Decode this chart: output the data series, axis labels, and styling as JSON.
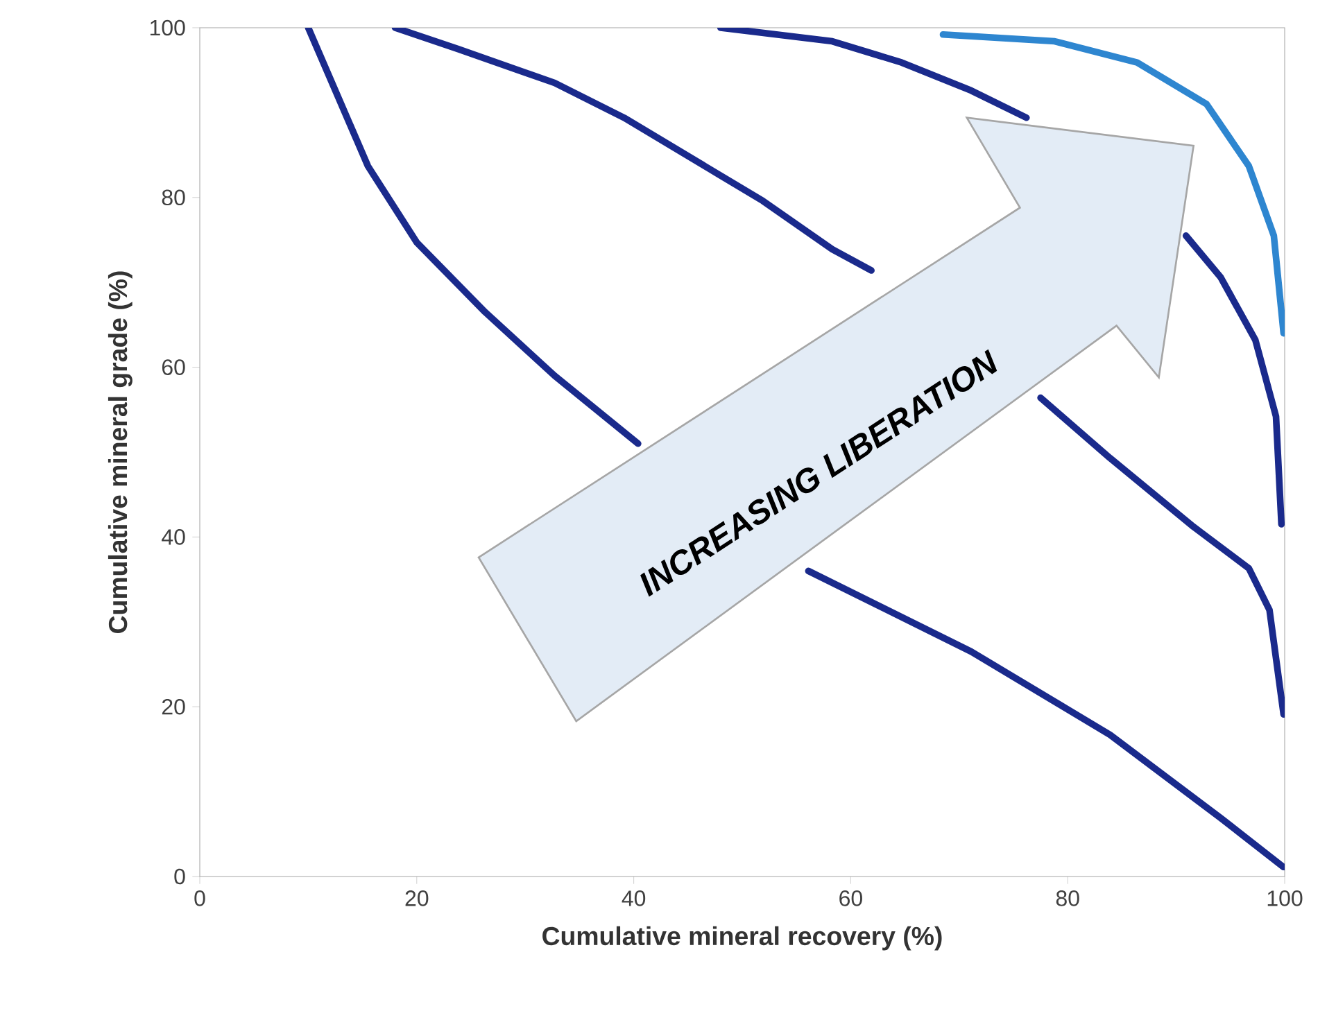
{
  "chart_data": {
    "type": "line",
    "xlabel": "Cumulative mineral recovery (%)",
    "ylabel": "Cumulative mineral  grade (%)",
    "xlim": [
      0,
      100
    ],
    "ylim": [
      0,
      100
    ],
    "xticks": [
      0,
      20,
      40,
      60,
      80,
      100
    ],
    "yticks": [
      0,
      20,
      40,
      60,
      80,
      100
    ],
    "marker": "none",
    "line_style": "solid",
    "annotations": [
      "INCREASING LIBERATION"
    ],
    "series": [
      {
        "color": "#1a2a8c",
        "x": [
          10,
          15.5,
          20,
          26.3,
          32.7,
          40.4,
          null,
          56.1,
          71.1,
          83.9,
          94.1,
          99.9
        ],
        "values": [
          100,
          83.7,
          74.7,
          66.5,
          59,
          51,
          null,
          36,
          26.5,
          16.7,
          6.9,
          1.1
        ]
      },
      {
        "color": "#1a2a8c",
        "x": [
          18,
          23.8,
          32.7,
          39.1,
          45.5,
          51.9,
          58.3,
          61.9,
          null,
          77.5,
          83.9,
          91.6,
          96.7,
          98.6,
          99.9
        ],
        "values": [
          100,
          97.5,
          93.5,
          89.4,
          84.5,
          79.6,
          73.9,
          71.4,
          null,
          56.4,
          49.3,
          41.2,
          36.3,
          31.4,
          19.1
        ]
      },
      {
        "color": "#1a2a8c",
        "x": [
          48,
          58.3,
          64.7,
          71.1,
          76.2,
          null,
          90.9,
          94.1,
          97.3,
          99.2,
          99.7
        ],
        "values": [
          100,
          98.4,
          95.9,
          92.6,
          89.4,
          null,
          75.5,
          70.6,
          63.2,
          54.2,
          41.5
        ]
      },
      {
        "color": "#2e86d0",
        "x": [
          68.5,
          78.8,
          86.4,
          92.8,
          96.7,
          99,
          99.9
        ],
        "values": [
          99.2,
          98.4,
          95.9,
          91,
          83.7,
          75.5,
          64
        ]
      }
    ]
  }
}
